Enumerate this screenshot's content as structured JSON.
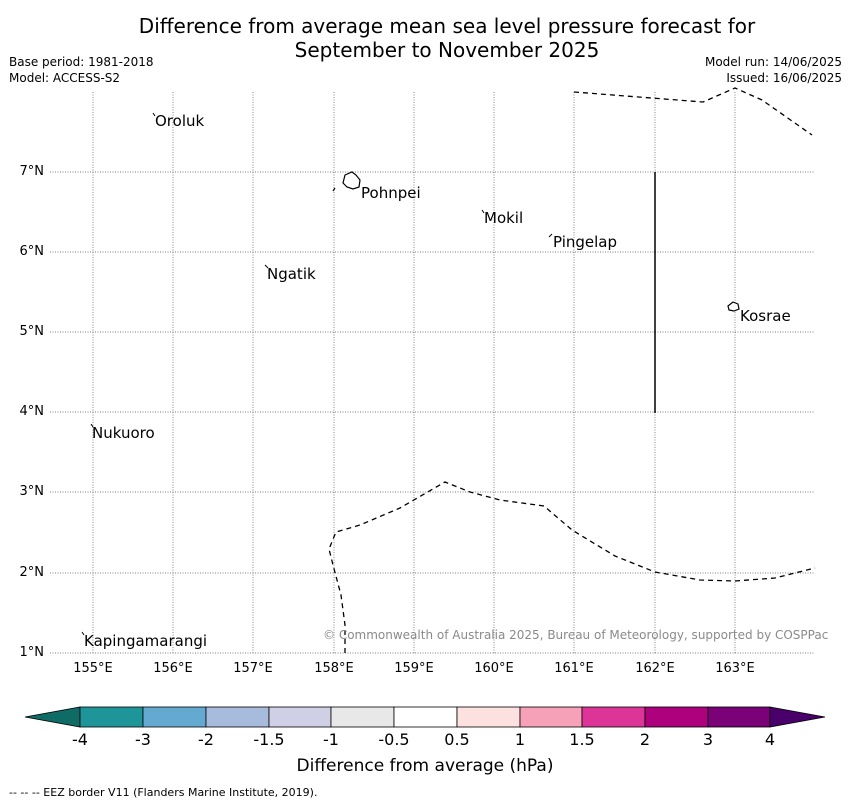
{
  "header": {
    "title_line1": "Difference from average mean sea level pressure forecast for",
    "title_line2": "September to November 2025",
    "base_period": "Base period: 1981-2018",
    "model": "Model: ACCESS-S2",
    "model_run": "Model run: 14/06/2025",
    "issued": "Issued: 16/06/2025"
  },
  "map": {
    "lat_labels": [
      "7°N",
      "6°N",
      "5°N",
      "4°N",
      "3°N",
      "2°N",
      "1°N"
    ],
    "lon_labels": [
      "155°E",
      "156°E",
      "157°E",
      "158°E",
      "159°E",
      "160°E",
      "161°E",
      "162°E",
      "163°E"
    ],
    "lat_range": [
      1,
      8
    ],
    "lon_range": [
      154.5,
      164
    ],
    "gridlines": true,
    "places": [
      "Oroluk",
      "Pohnpei",
      "Mokil",
      "Pingelap",
      "Ngatik",
      "Kosrae",
      "Nukuoro",
      "Kapingamarangi"
    ],
    "copyright": "© Commonwealth of Australia 2025, Bureau of Meteorology, supported by COSPPac"
  },
  "colorbar": {
    "title": "Difference from average (hPa)",
    "ticks": [
      "-4",
      "-3",
      "-2",
      "-1.5",
      "-1",
      "-0.5",
      "0.5",
      "1",
      "1.5",
      "2",
      "3",
      "4"
    ],
    "colors": [
      "#0f6b66",
      "#1e9598",
      "#64a9d0",
      "#a7bbdd",
      "#cfcfe6",
      "#e8e8e8",
      "#ffffff",
      "#fde0e0",
      "#f7a1b8",
      "#dd3597",
      "#ae017e",
      "#7a0177",
      "#49006a"
    ]
  },
  "footer": {
    "legend_text": "--  --  -- EEZ border V11 (Flanders Marine Institute, 2019)."
  }
}
